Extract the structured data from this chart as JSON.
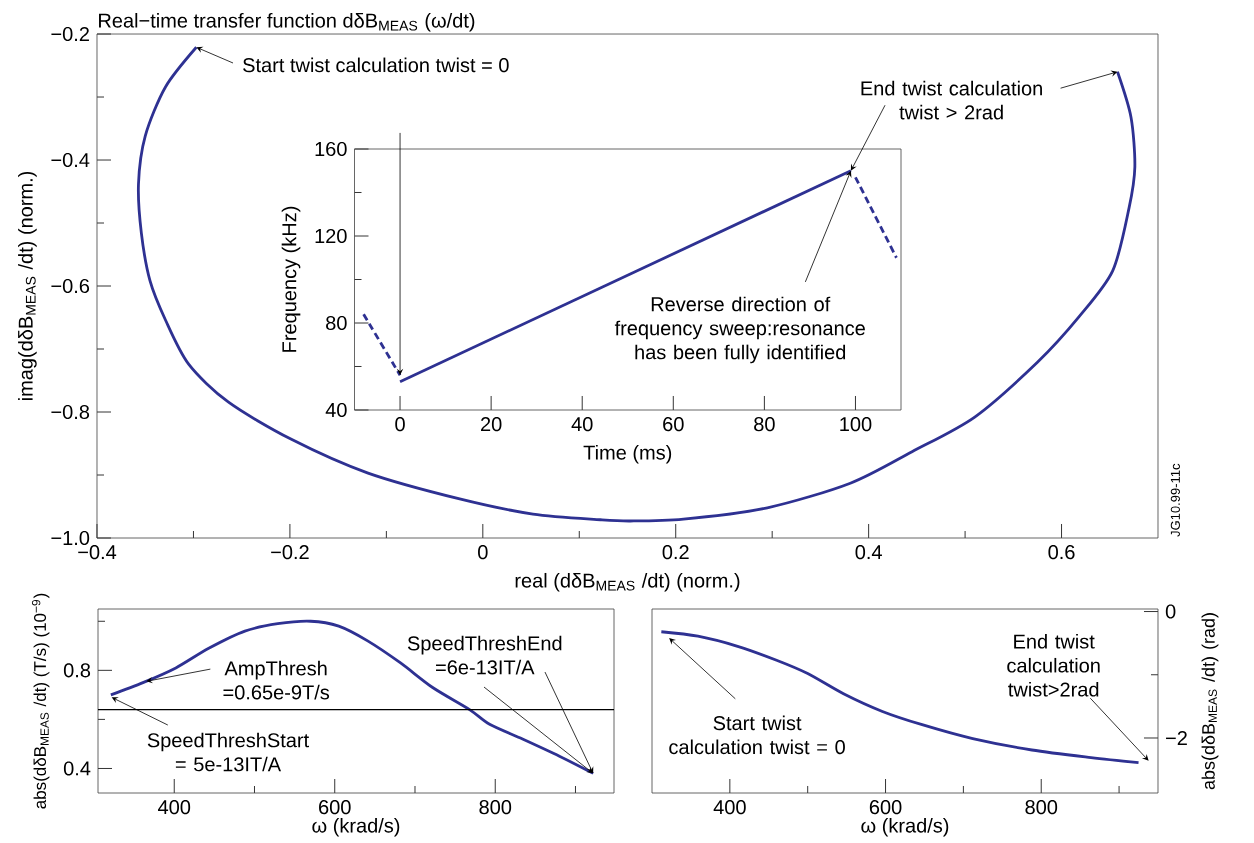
{
  "chart_data": [
    {
      "type": "line",
      "title": "Real−time transfer function dδB$_{MEAS}$ (ω/dt)",
      "xlabel": "real (dδB$_{MEAS}$ /dt) (norm.)",
      "ylabel": "imag(dδB$_{MEAS}$ /dt) (norm.)",
      "xlim": [
        -0.4,
        0.7
      ],
      "ylim": [
        -1.0,
        -0.2
      ],
      "xticks": [
        {
          "value": -0.4,
          "label": "−0.4"
        },
        {
          "value": -0.3,
          "label": null
        },
        {
          "value": -0.2,
          "label": "−0.2"
        },
        {
          "value": -0.1,
          "label": null
        },
        0,
        {
          "value": 0.1,
          "label": null
        },
        0.2,
        {
          "value": 0.3,
          "label": null
        },
        0.4,
        {
          "value": 0.5,
          "label": null
        },
        0.6
      ],
      "yticks": [
        {
          "value": -1.0,
          "label": "−1.0"
        },
        {
          "value": -0.9,
          "label": null
        },
        {
          "value": -0.8,
          "label": "−0.8"
        },
        {
          "value": -0.7,
          "label": null
        },
        {
          "value": -0.6,
          "label": "−0.6"
        },
        {
          "value": -0.5,
          "label": null
        },
        {
          "value": -0.4,
          "label": "−0.4"
        },
        {
          "value": -0.3,
          "label": null
        },
        {
          "value": -0.2,
          "label": "−0.2"
        }
      ],
      "series": [
        {
          "color": "#2e3192",
          "x": [
            -0.297,
            -0.329,
            -0.35,
            -0.357,
            -0.354,
            -0.345,
            -0.329,
            -0.305,
            -0.264,
            -0.199,
            -0.119,
            -0.024,
            0.052,
            0.122,
            0.153,
            0.208,
            0.295,
            0.381,
            0.445,
            0.51,
            0.575,
            0.618,
            0.653,
            0.67,
            0.676,
            0.672,
            0.658
          ],
          "values": [
            -0.221,
            -0.284,
            -0.362,
            -0.438,
            -0.516,
            -0.592,
            -0.654,
            -0.724,
            -0.784,
            -0.843,
            -0.897,
            -0.938,
            -0.962,
            -0.971,
            -0.973,
            -0.97,
            -0.952,
            -0.913,
            -0.863,
            -0.808,
            -0.721,
            -0.649,
            -0.576,
            -0.476,
            -0.411,
            -0.332,
            -0.26
          ]
        }
      ],
      "annotations": [
        {
          "text": "Start twist calculation twist = 0",
          "x": -0.297,
          "y": -0.221
        },
        {
          "text": "End twist calculation twist > 2rad",
          "x": 0.658,
          "y": -0.26
        },
        "JG10.99-11c"
      ]
    },
    {
      "type": "line",
      "xlabel": "Time (ms)",
      "ylabel": "Frequency (kHz)",
      "xlim": [
        -10,
        110
      ],
      "ylim": [
        40,
        160
      ],
      "xticks": [
        0,
        20,
        40,
        60,
        80,
        100
      ],
      "yticks": [
        40,
        {
          "value": 60,
          "label": null
        },
        80,
        {
          "value": 100,
          "label": null
        },
        120,
        {
          "value": 140,
          "label": null
        },
        160
      ],
      "series": [
        {
          "color": "#2e3192",
          "line_style": "dashed",
          "x": [
            -8,
            0
          ],
          "values": [
            84,
            56
          ]
        },
        {
          "color": "#2e3192",
          "line_style": "solid",
          "x": [
            0,
            99
          ],
          "values": [
            53,
            150
          ]
        },
        {
          "color": "#2e3192",
          "line_style": "dashed",
          "x": [
            100,
            109
          ],
          "values": [
            147,
            110
          ]
        }
      ],
      "annotations": [
        {
          "text": "Reverse direction of frequency sweep:resonance has been fully identified",
          "x": 99,
          "y": 150
        }
      ]
    },
    {
      "type": "line",
      "xlabel": "ω (krad/s)",
      "ylabel": "abs(dδB$_{MEAS}$ /dt) (T/s) (10$^{−9}$)",
      "xlim": [
        305,
        948
      ],
      "ylim": [
        0.3,
        1.05
      ],
      "xticks": [
        400,
        {
          "value": 500,
          "label": null
        },
        600,
        {
          "value": 700,
          "label": null
        },
        800,
        {
          "value": 900,
          "label": null
        }
      ],
      "yticks": [
        0.4,
        {
          "value": 0.6,
          "label": null
        },
        0.8,
        {
          "value": 1.0,
          "label": null
        }
      ],
      "series": [
        {
          "color": "#2e3192",
          "x": [
            321,
            361,
            402,
            443,
            488,
            529,
            570,
            605,
            641,
            682,
            722,
            768,
            793,
            834,
            880,
            922
          ],
          "values": [
            0.7,
            0.75,
            0.81,
            0.89,
            0.96,
            0.99,
            1.0,
            0.98,
            0.92,
            0.83,
            0.73,
            0.64,
            0.58,
            0.52,
            0.45,
            0.38
          ]
        }
      ],
      "ref_lines": [
        {
          "axis": "y",
          "value": 0.64,
          "color": "#000000"
        }
      ],
      "annotations": [
        {
          "text": "AmpThresh =0.65e-9T/s",
          "x": 365,
          "y": 0.755
        },
        {
          "text": "SpeedThreshStart = 5e-13IT/A",
          "x": 322,
          "y": 0.69
        },
        {
          "text": "SpeedThreshEnd =6e-13IT/A",
          "x": 922,
          "y": 0.38
        }
      ]
    },
    {
      "type": "line",
      "xlabel": "ω (krad/s)",
      "y2label": "abs(dδB$_{MEAS}$ /dt) (rad)",
      "xlim": [
        300,
        950
      ],
      "y2lim": [
        -2.87,
        0.04
      ],
      "xticks": [
        400,
        {
          "value": 500,
          "label": null
        },
        600,
        {
          "value": 700,
          "label": null
        },
        800,
        {
          "value": 900,
          "label": null
        }
      ],
      "y2ticks": [
        {
          "value": -2,
          "label": "−2"
        },
        {
          "value": -1,
          "label": null
        },
        0
      ],
      "series": [
        {
          "color": "#2e3192",
          "axis": "y2",
          "x": [
            312,
            359,
            410,
            460,
            500,
            546,
            596,
            647,
            712,
            788,
            864,
            925
          ],
          "values": [
            -0.32,
            -0.39,
            -0.55,
            -0.77,
            -0.98,
            -1.3,
            -1.58,
            -1.79,
            -2.01,
            -2.19,
            -2.31,
            -2.39
          ]
        }
      ],
      "annotations": [
        "Start twist calculation twist = 0",
        "End twist calculation twist>2rad"
      ]
    }
  ]
}
